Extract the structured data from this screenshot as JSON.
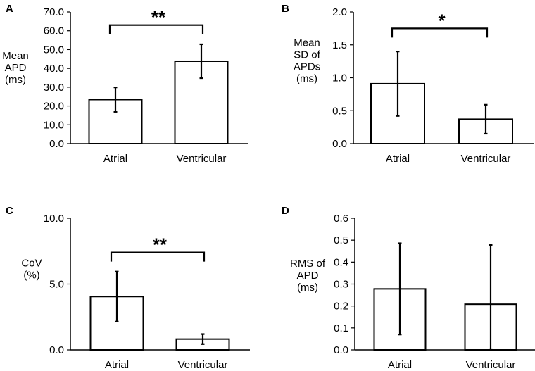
{
  "chart_data": [
    {
      "panel": "A",
      "type": "bar",
      "categories": [
        "Atrial",
        "Ventricular"
      ],
      "values": [
        23.4,
        43.8
      ],
      "errors": [
        6.5,
        9.0
      ],
      "ylabel": [
        "Mean",
        "APD",
        "(ms)"
      ],
      "ylim": [
        0,
        70
      ],
      "yticks": [
        0,
        10,
        20,
        30,
        40,
        50,
        60,
        70
      ],
      "ytick_labels": [
        "0.0",
        "10.0",
        "20.0",
        "30.0",
        "40.0",
        "50.0",
        "60.0",
        "70.0"
      ],
      "significance": {
        "from": "Atrial",
        "to": "Ventricular",
        "label": "**",
        "level": 63
      }
    },
    {
      "panel": "B",
      "type": "bar",
      "categories": [
        "Atrial",
        "Ventricular"
      ],
      "values": [
        0.91,
        0.37
      ],
      "errors": [
        0.49,
        0.22
      ],
      "ylabel": [
        "Mean",
        "SD of",
        "APDs",
        "(ms)"
      ],
      "ylim": [
        0,
        2.0
      ],
      "yticks": [
        0,
        0.5,
        1.0,
        1.5,
        2.0
      ],
      "ytick_labels": [
        "0.0",
        "0.5",
        "1.0",
        "1.5",
        "2.0"
      ],
      "significance": {
        "from": "Atrial",
        "to": "Ventricular",
        "label": "*",
        "level": 1.75
      }
    },
    {
      "panel": "C",
      "type": "bar",
      "categories": [
        "Atrial",
        "Ventricular"
      ],
      "values": [
        4.05,
        0.82
      ],
      "errors": [
        1.9,
        0.38
      ],
      "ylabel": [
        "CoV",
        "(%)"
      ],
      "ylim": [
        0,
        10
      ],
      "yticks": [
        0,
        5,
        10
      ],
      "ytick_labels": [
        "0.0",
        "5.0",
        "10.0"
      ],
      "significance": {
        "from": "Atrial",
        "to": "Ventricular",
        "label": "**",
        "level": 7.4
      }
    },
    {
      "panel": "D",
      "type": "bar",
      "categories": [
        "Atrial",
        "Ventricular"
      ],
      "values": [
        0.278,
        0.208
      ],
      "errors": [
        0.208,
        0.27
      ],
      "ylabel": [
        "RMS of",
        "APD",
        "(ms)"
      ],
      "ylim": [
        0,
        0.6
      ],
      "yticks": [
        0,
        0.1,
        0.2,
        0.3,
        0.4,
        0.5,
        0.6
      ],
      "ytick_labels": [
        "0.0",
        "0.1",
        "0.2",
        "0.3",
        "0.4",
        "0.5",
        "0.6"
      ],
      "significance": null
    }
  ]
}
